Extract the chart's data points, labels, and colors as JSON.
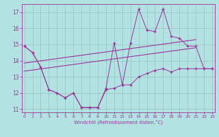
{
  "x_values": [
    0,
    1,
    2,
    3,
    4,
    5,
    6,
    7,
    8,
    9,
    10,
    11,
    12,
    13,
    14,
    15,
    16,
    17,
    18,
    19,
    20,
    21,
    22,
    23
  ],
  "y_zigzag": [
    14.9,
    14.5,
    13.6,
    12.2,
    12.0,
    11.7,
    12.0,
    11.1,
    11.1,
    11.1,
    12.3,
    15.1,
    12.5,
    15.1,
    17.2,
    15.9,
    15.8,
    17.2,
    15.5,
    15.4,
    14.9,
    14.9,
    13.5,
    13.5
  ],
  "y_low": [
    14.9,
    14.5,
    13.6,
    12.2,
    12.0,
    11.7,
    12.0,
    11.1,
    11.1,
    11.1,
    12.2,
    12.3,
    12.5,
    12.5,
    13.0,
    13.2,
    13.4,
    13.5,
    13.3,
    13.5,
    13.5,
    13.5,
    13.5,
    13.5
  ],
  "trend1_x": [
    0,
    21
  ],
  "trend1_y": [
    13.85,
    15.3
  ],
  "trend2_x": [
    0,
    21
  ],
  "trend2_y": [
    13.35,
    14.8
  ],
  "ylim": [
    10.8,
    17.5
  ],
  "xlim": [
    -0.3,
    23.3
  ],
  "yticks": [
    11,
    12,
    13,
    14,
    15,
    16,
    17
  ],
  "xticks": [
    0,
    1,
    2,
    3,
    4,
    5,
    6,
    7,
    8,
    9,
    10,
    11,
    12,
    13,
    14,
    15,
    16,
    17,
    18,
    19,
    20,
    21,
    22,
    23
  ],
  "xlabel": "Windchill (Refroidissement éolien,°C)",
  "bg_color": "#b3e2e2",
  "grid_color": "#9bbfbf",
  "line_color": "#993399",
  "marker": "+"
}
